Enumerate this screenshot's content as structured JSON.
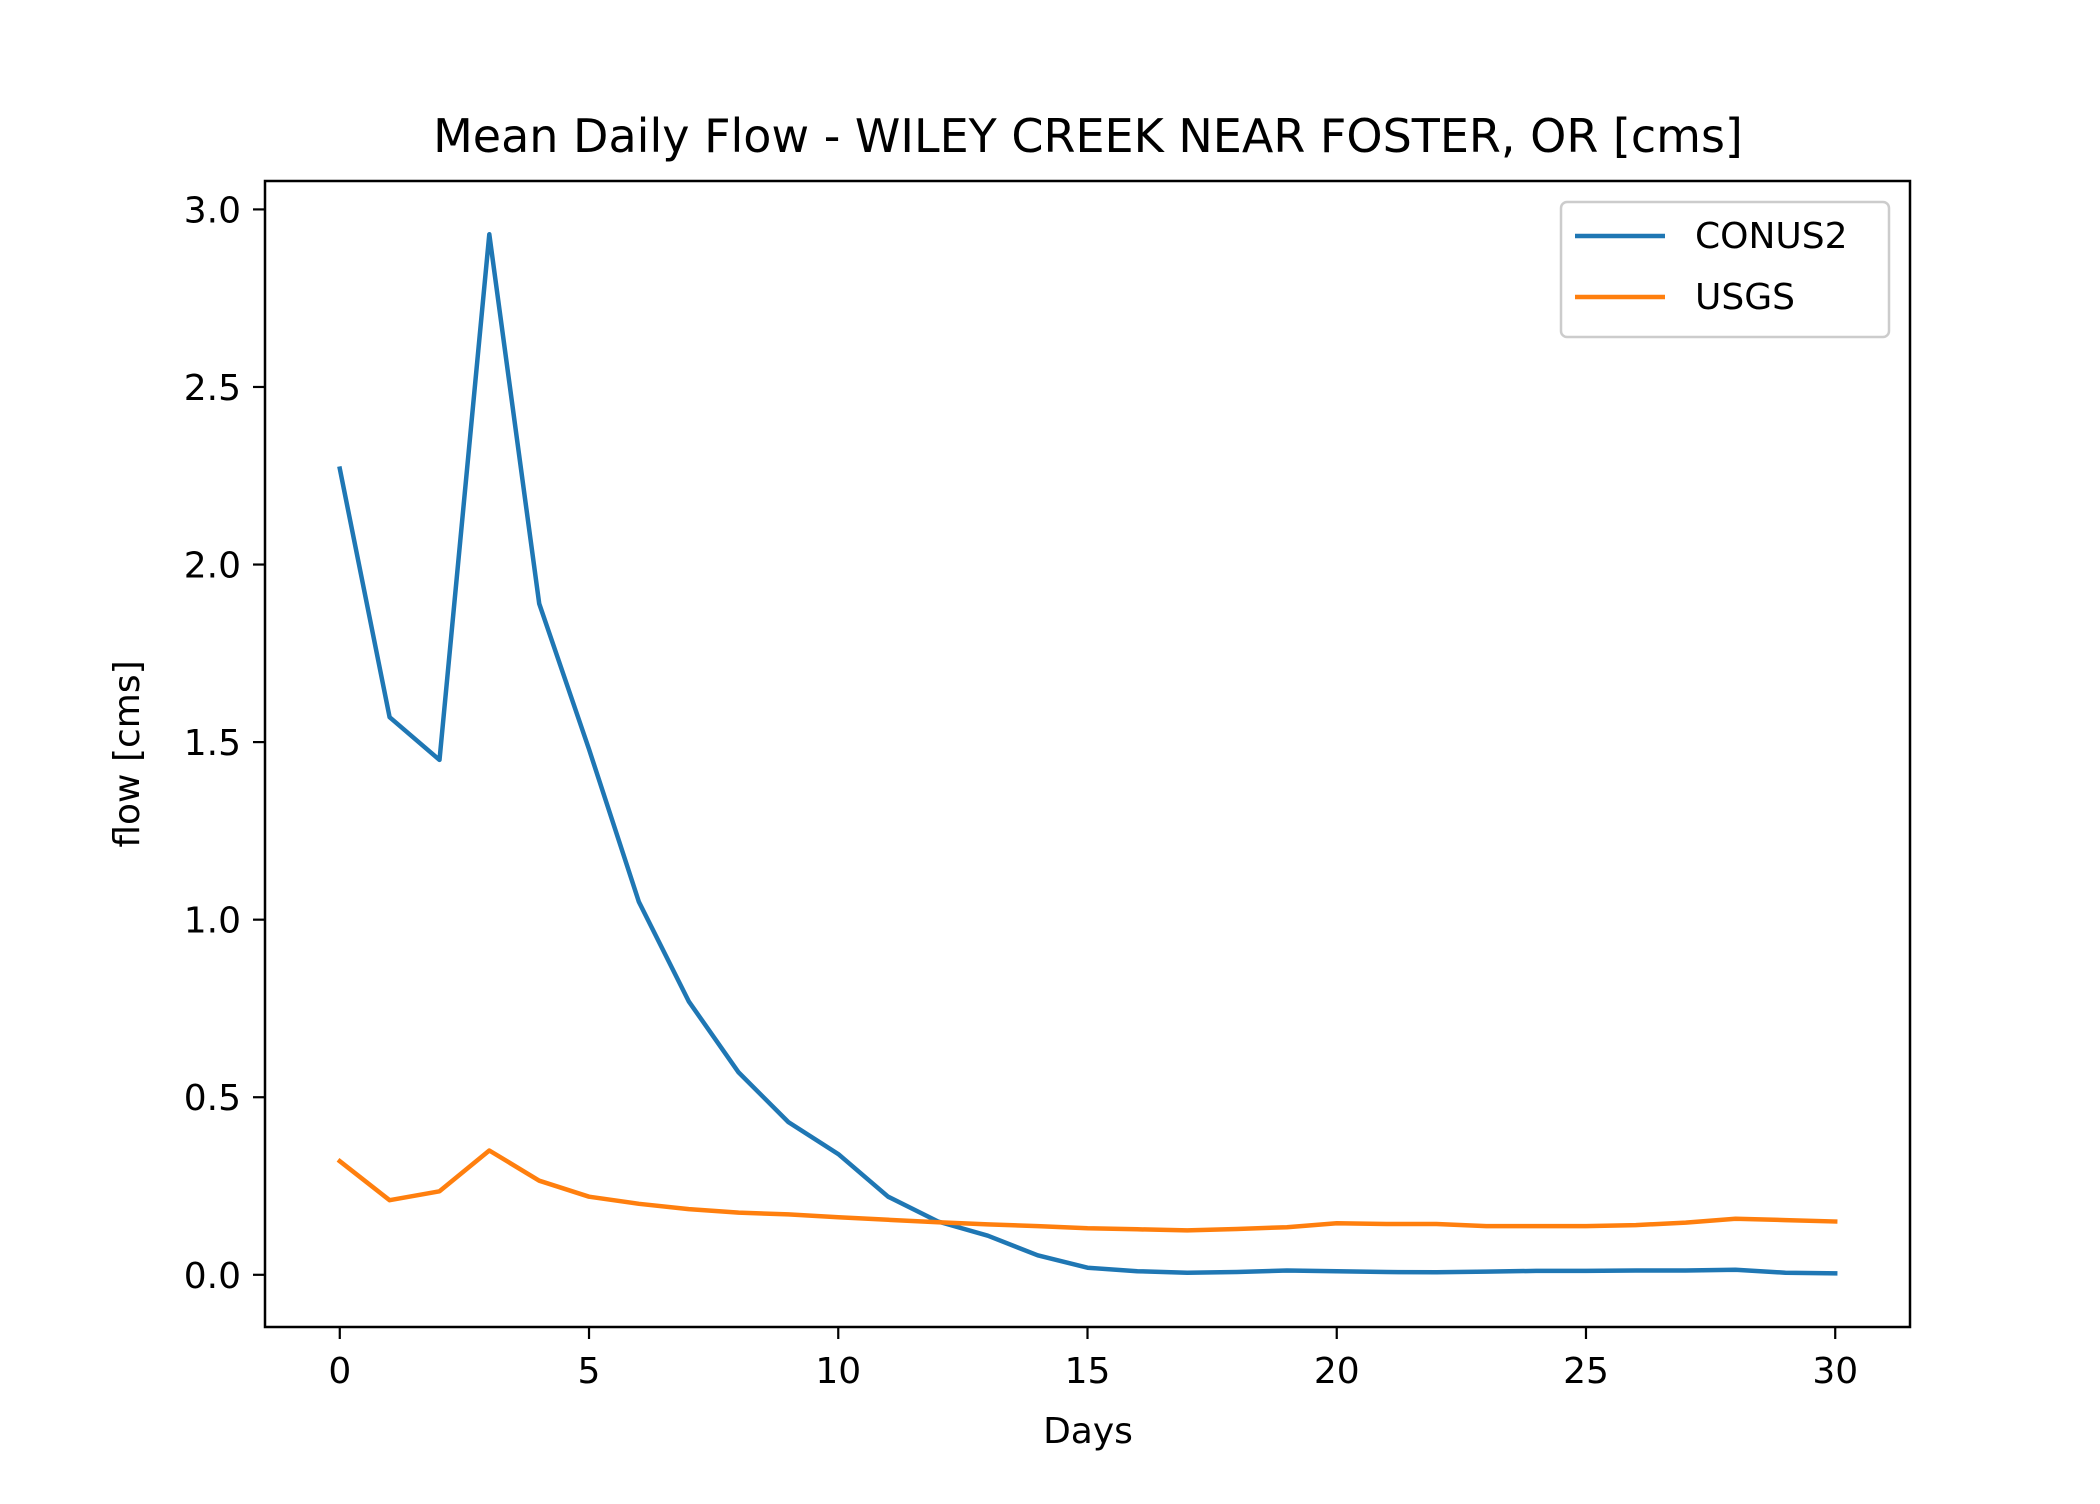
{
  "chart_data": {
    "type": "line",
    "title": "Mean Daily Flow - WILEY CREEK NEAR FOSTER, OR [cms]",
    "xlabel": "Days",
    "ylabel": "flow [cms]",
    "xlim": [
      -1.5,
      31.5
    ],
    "ylim": [
      -0.147,
      3.08
    ],
    "xticks": [
      0,
      5,
      10,
      15,
      20,
      25,
      30
    ],
    "xtick_labels": [
      "0",
      "5",
      "10",
      "15",
      "20",
      "25",
      "30"
    ],
    "yticks": [
      0.0,
      0.5,
      1.0,
      1.5,
      2.0,
      2.5,
      3.0
    ],
    "ytick_labels": [
      "0.0",
      "0.5",
      "1.0",
      "1.5",
      "2.0",
      "2.5",
      "3.0"
    ],
    "grid": false,
    "legend_position": "top-right",
    "x": [
      0,
      1,
      2,
      3,
      4,
      5,
      6,
      7,
      8,
      9,
      10,
      11,
      12,
      13,
      14,
      15,
      16,
      17,
      18,
      19,
      20,
      21,
      22,
      23,
      24,
      25,
      26,
      27,
      28,
      29,
      30
    ],
    "series": [
      {
        "name": "CONUS2",
        "color": "#1f77b4",
        "values": [
          2.27,
          1.57,
          1.45,
          2.93,
          1.89,
          1.48,
          1.05,
          0.77,
          0.57,
          0.43,
          0.34,
          0.22,
          0.15,
          0.11,
          0.055,
          0.02,
          0.01,
          0.006,
          0.008,
          0.012,
          0.01,
          0.008,
          0.007,
          0.009,
          0.011,
          0.011,
          0.012,
          0.012,
          0.014,
          0.006,
          0.004
        ]
      },
      {
        "name": "USGS",
        "color": "#ff7f0e",
        "values": [
          0.32,
          0.21,
          0.235,
          0.35,
          0.265,
          0.22,
          0.2,
          0.185,
          0.175,
          0.17,
          0.162,
          0.155,
          0.148,
          0.142,
          0.137,
          0.131,
          0.128,
          0.125,
          0.129,
          0.134,
          0.145,
          0.143,
          0.143,
          0.137,
          0.137,
          0.137,
          0.14,
          0.147,
          0.158,
          0.154,
          0.15
        ]
      }
    ]
  }
}
